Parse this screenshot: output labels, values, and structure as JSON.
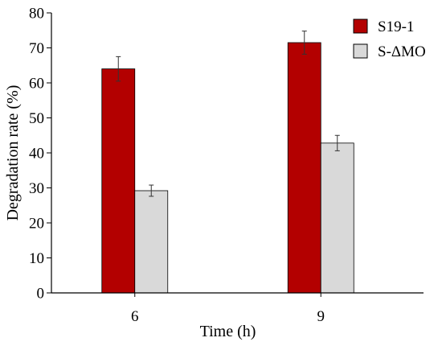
{
  "chart_data": {
    "type": "bar",
    "categories": [
      "6",
      "9"
    ],
    "series": [
      {
        "name": "S19-1",
        "values": [
          64,
          71.5
        ],
        "errors": [
          3.5,
          3.3
        ],
        "color": "#b30000"
      },
      {
        "name": "S-ΔMO",
        "values": [
          29.2,
          42.8
        ],
        "errors": [
          1.6,
          2.2
        ],
        "color": "#d9d9d9"
      }
    ],
    "xlabel": "Time (h)",
    "ylabel": "Degradation rate (%)",
    "ylim": [
      0,
      80
    ],
    "yticks": [
      "0",
      "10",
      "20",
      "30",
      "40",
      "50",
      "60",
      "70",
      "80"
    ],
    "grid": false,
    "legend_position": "top-right"
  }
}
